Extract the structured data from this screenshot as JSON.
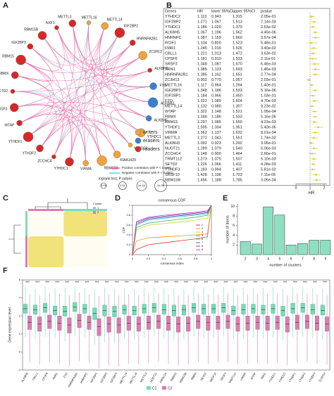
{
  "chart_data": [
    {
      "type": "network",
      "panel": "A",
      "nodes": [
        {
          "name": "METTL16",
          "group": 0
        },
        {
          "name": "METTL14",
          "group": 0
        },
        {
          "name": "IGF2BP2",
          "group": 2
        },
        {
          "name": "HNRNPA2B1",
          "group": 2
        },
        {
          "name": "ZC3H13",
          "group": 0
        },
        {
          "name": "ALKBH5",
          "group": 2
        },
        {
          "name": "FTO",
          "group": 1
        },
        {
          "name": "ALKBH3",
          "group": 1
        },
        {
          "name": "ALKBH5",
          "group": 1
        },
        {
          "name": "YTHDC1",
          "group": 0
        },
        {
          "name": "YTHDC2",
          "group": 0
        },
        {
          "name": "KIAA1429",
          "group": 0
        },
        {
          "name": "RBM15B",
          "group": 0
        },
        {
          "name": "VIRMA",
          "group": 0
        },
        {
          "name": "YTHDC1",
          "group": 2
        },
        {
          "name": "ZCCHC4",
          "group": 2
        },
        {
          "name": "YTHDF2",
          "group": 2
        },
        {
          "name": "YTHDF1",
          "group": 2
        },
        {
          "name": "WTAP",
          "group": 2
        },
        {
          "name": "SRSF3",
          "group": 2
        },
        {
          "name": "SETD2",
          "group": 2
        },
        {
          "name": "RBMX",
          "group": 2
        },
        {
          "name": "RBM15",
          "group": 2
        },
        {
          "name": "IGF2BP3",
          "group": 2
        },
        {
          "name": "RBM15B",
          "group": 2
        },
        {
          "name": "NXF1",
          "group": 2
        },
        {
          "name": "METTL3",
          "group": 2
        }
      ],
      "group_names": [
        "writers",
        "erasers",
        "readers"
      ],
      "group_colors": [
        "#f2a33a",
        "#3b7fd4",
        "#d62828"
      ],
      "edge_legend": [
        "Positive correlation with P < 0.0001",
        "Negative correlation with P < 0.0001"
      ],
      "edge_colors": [
        "#e45f9f",
        "#5cc8e8"
      ],
      "size_title": "logrank test, P values",
      "size_labels": [
        "0.05",
        "0.01",
        "1e-04",
        "1e-08"
      ]
    },
    {
      "type": "forest",
      "panel": "B",
      "header": [
        "Genes",
        "HR",
        "lower 95%CI",
        "upper 95%CI",
        "pvalue"
      ],
      "xlabel": "HR",
      "xlim": [
        0,
        2.2
      ],
      "xticks": [
        0,
        1,
        2
      ],
      "color": "#e0c93a",
      "rows": [
        [
          "YTHDC2",
          "1.113",
          "0.943",
          "1.315",
          "2.05e-01"
        ],
        [
          "IGF2BP2",
          "1.271",
          "1.067",
          "1.513",
          "7.14e-03"
        ],
        [
          "YTHDC1",
          "1.186",
          "1.020",
          "1.379",
          "2.63e-02"
        ],
        [
          "ALKBH5",
          "1.367",
          "1.196",
          "1.562",
          "4.45e-06"
        ],
        [
          "HNRNPC",
          "1.387",
          "1.159",
          "1.660",
          "3.57e-04"
        ],
        [
          "RCIF1",
          "1.104",
          "0.800",
          "1.523",
          "5.48e-01"
        ],
        [
          "FMR1",
          "1.245",
          "1.016",
          "1.526",
          "3.40e-02"
        ],
        [
          "CBLL1",
          "1.221",
          "1.013",
          "1.472",
          "3.63e-02"
        ],
        [
          "CPSF6",
          "1.181",
          "0.910",
          "1.533",
          "2.11e-01"
        ],
        [
          "SRSF3",
          "1.348",
          "1.087",
          "1.670",
          "6.46e-03"
        ],
        [
          "XRN1",
          "1.385",
          "1.133",
          "1.693",
          "1.46e-03"
        ],
        [
          "HNRNPA2B1",
          "1.385",
          "1.162",
          "1.651",
          "2.77e-04"
        ],
        [
          "ZC3H13",
          "0.902",
          "0.770",
          "1.057",
          "2.03e-01"
        ],
        [
          "METTL16",
          "1.117",
          "0.964",
          "1.294",
          "1.40e-01"
        ],
        [
          "IGF2BP3",
          "1.348",
          "1.186",
          "1.533",
          "5.16e-06"
        ],
        [
          "IGF2BP1",
          "1.184",
          "0.966",
          "1.450",
          "1.03e-01"
        ],
        [
          "FTO",
          "1.322",
          "1.089",
          "1.604",
          "4.70e-03"
        ],
        [
          "METTL14",
          "1.132",
          "0.980",
          "1.307",
          "9.23e-02"
        ],
        [
          "WTAP",
          "1.322",
          "1.148",
          "1.521",
          "1.05e-04"
        ],
        [
          "RBMX",
          "1.348",
          "1.186",
          "1.533",
          "5.16e-06"
        ],
        [
          "RBM15",
          "1.297",
          "1.085",
          "1.550",
          "4.23e-03"
        ],
        [
          "YTHDF1",
          "1.595",
          "1.304",
          "1.951",
          "5.40e-06"
        ],
        [
          "VIRMA",
          "1.362",
          "1.137",
          "1.632",
          "8.01e-04"
        ],
        [
          "METTL3",
          "1.272",
          "1.043",
          "1.551",
          "1.74e-02"
        ],
        [
          "ALKBH3",
          "1.092",
          "0.923",
          "1.292",
          "3.05e-01"
        ],
        [
          "NUDT21",
          "1.289",
          "1.079",
          "1.540",
          "5.06e-03"
        ],
        [
          "ZCCHC4",
          "1.148",
          "0.900",
          "1.464",
          "2.66e-01"
        ],
        [
          "TRMT112",
          "1.273",
          "1.075",
          "1.507",
          "5.10e-03"
        ],
        [
          "SETD2",
          "1.226",
          "1.066",
          "1.411",
          "4.28e-03"
        ],
        [
          "YTHDF3",
          "1.183",
          "0.994",
          "1.407",
          "5.81e-02"
        ],
        [
          "SRSF10",
          "1.428",
          "1.198",
          "1.703",
          "7.11e-05"
        ],
        [
          "RBM15B",
          "1.456",
          "1.188",
          "1.785",
          "3.05e-04"
        ]
      ]
    },
    {
      "type": "heatmap",
      "panel": "C",
      "legend_title": "Cluster",
      "legend": [
        "1",
        "2"
      ],
      "colors": [
        "#7fdcb3",
        "#e07ab2"
      ]
    },
    {
      "type": "line",
      "panel": "D",
      "title": "consensus CDF",
      "xlabel": "consensus index",
      "ylabel": "CDF",
      "xlim": [
        0,
        1
      ],
      "ylim": [
        0,
        1
      ],
      "xticks": [
        0,
        0.2,
        0.4,
        0.6,
        0.8,
        1
      ],
      "yticks": [
        0,
        0.2,
        0.4,
        0.6,
        0.8,
        1
      ],
      "x": [
        0,
        0.05,
        0.2,
        0.4,
        0.6,
        0.8,
        0.95,
        1
      ],
      "series": [
        {
          "name": "2",
          "color": "#e3342f",
          "values": [
            0,
            0.1,
            0.2,
            0.24,
            0.28,
            0.32,
            0.36,
            1
          ]
        },
        {
          "name": "3",
          "color": "#f39c12",
          "values": [
            0,
            0.28,
            0.34,
            0.36,
            0.38,
            0.4,
            0.42,
            1
          ]
        },
        {
          "name": "4",
          "color": "#c0d236",
          "values": [
            0,
            0.5,
            0.6,
            0.63,
            0.66,
            0.7,
            0.74,
            1
          ]
        },
        {
          "name": "5",
          "color": "#38b54a",
          "values": [
            0,
            0.55,
            0.64,
            0.68,
            0.72,
            0.76,
            0.8,
            1
          ]
        },
        {
          "name": "6",
          "color": "#2cc5c8",
          "values": [
            0,
            0.6,
            0.7,
            0.74,
            0.77,
            0.8,
            0.83,
            1
          ]
        },
        {
          "name": "7",
          "color": "#3b6fd6",
          "values": [
            0,
            0.62,
            0.72,
            0.76,
            0.79,
            0.82,
            0.85,
            1
          ]
        },
        {
          "name": "8",
          "color": "#8e44ad",
          "values": [
            0,
            0.65,
            0.74,
            0.78,
            0.81,
            0.84,
            0.87,
            1
          ]
        },
        {
          "name": "9",
          "color": "#d63ab0",
          "values": [
            0,
            0.67,
            0.76,
            0.8,
            0.83,
            0.86,
            0.89,
            1
          ]
        }
      ]
    },
    {
      "type": "bar",
      "panel": "E",
      "xlabel": "number of clusters",
      "ylabel": "number of items",
      "categories": [
        "2",
        "3",
        "4",
        "5",
        "6",
        "7",
        "8",
        "9"
      ],
      "values": [
        2.7,
        2.2,
        9.9,
        8.2,
        2.0,
        2.3,
        3.0,
        3.0
      ],
      "color": "#8fe0c2",
      "ylim": [
        0,
        10.5
      ],
      "yticks": [
        2,
        4,
        6,
        8,
        10
      ]
    },
    {
      "type": "box",
      "panel": "F",
      "ylabel": "Gene expression level",
      "ylim": [
        -4,
        6
      ],
      "yticks": [
        -4,
        -2,
        0,
        2,
        4,
        6
      ],
      "categories": [
        "ALKBH5",
        "CBLL1",
        "CPSF6",
        "FMR1",
        "FTO",
        "HNRNPA2B1",
        "HNRNPC",
        "IGF2BP1",
        "IGF2BP2",
        "IGF2BP3",
        "METTL14",
        "METTL16",
        "METTL3",
        "NUDT21",
        "PRRC2A",
        "RBM15",
        "RBM15B",
        "RBMX",
        "SETD2",
        "SRSF10",
        "SRSF3",
        "TRMT112",
        "VIRMA",
        "WTAP",
        "XRN1",
        "YTHDC1",
        "YTHDC2",
        "YTHDF1",
        "YTHDF2",
        "YTHDF3",
        "ZC3H13"
      ],
      "significance": [
        "***",
        "***",
        "***",
        "***",
        "***",
        "***",
        "***",
        "***",
        "***",
        "***",
        "***",
        "***",
        "***",
        "***",
        "***",
        "***",
        "***",
        "***",
        "***",
        "***",
        "***",
        "***",
        "***",
        "***",
        "***",
        "***",
        "***",
        "***",
        "***",
        "***",
        "***"
      ],
      "series": [
        {
          "name": "C1",
          "color": "#6fe0b8",
          "values": [
            [
              -0.4,
              2.3,
              2.8,
              3.3,
              5.2
            ],
            [
              -0.6,
              2.2,
              2.7,
              3.2,
              5.0
            ],
            [
              -0.3,
              2.4,
              2.9,
              3.4,
              5.3
            ],
            [
              -0.5,
              2.1,
              2.6,
              3.1,
              5.1
            ],
            [
              -0.8,
              2.0,
              2.5,
              3.1,
              5.2
            ],
            [
              -0.2,
              2.5,
              3.0,
              3.5,
              5.4
            ],
            [
              -0.4,
              2.3,
              2.8,
              3.3,
              5.1
            ],
            [
              -1.2,
              1.6,
              2.3,
              2.9,
              4.9
            ],
            [
              -0.9,
              2.0,
              2.6,
              3.2,
              5.2
            ],
            [
              -1.0,
              1.9,
              2.5,
              3.1,
              5.0
            ],
            [
              -0.5,
              2.2,
              2.7,
              3.2,
              5.1
            ],
            [
              -0.6,
              2.1,
              2.6,
              3.1,
              5.0
            ],
            [
              -0.4,
              2.3,
              2.8,
              3.3,
              5.2
            ],
            [
              -0.3,
              2.4,
              2.9,
              3.4,
              5.2
            ],
            [
              -0.5,
              2.2,
              2.7,
              3.3,
              5.1
            ],
            [
              -0.7,
              2.0,
              2.6,
              3.2,
              5.1
            ],
            [
              -0.6,
              2.1,
              2.7,
              3.2,
              5.0
            ],
            [
              -0.3,
              2.4,
              2.9,
              3.4,
              5.3
            ],
            [
              -0.5,
              2.2,
              2.8,
              3.3,
              5.2
            ],
            [
              -0.4,
              2.3,
              2.8,
              3.3,
              5.1
            ],
            [
              -0.3,
              2.4,
              2.9,
              3.4,
              5.2
            ],
            [
              -0.6,
              2.1,
              2.6,
              3.1,
              5.0
            ],
            [
              -0.5,
              2.2,
              2.7,
              3.3,
              5.2
            ],
            [
              -0.4,
              2.3,
              2.8,
              3.3,
              5.1
            ],
            [
              -0.5,
              2.2,
              2.7,
              3.2,
              5.1
            ],
            [
              -0.4,
              2.3,
              2.8,
              3.3,
              5.2
            ],
            [
              -0.7,
              2.0,
              2.6,
              3.1,
              5.0
            ],
            [
              -0.4,
              2.3,
              2.8,
              3.4,
              5.2
            ],
            [
              -0.3,
              2.4,
              2.9,
              3.4,
              5.3
            ],
            [
              -0.5,
              2.2,
              2.7,
              3.3,
              5.1
            ],
            [
              -0.6,
              2.1,
              2.6,
              3.2,
              5.0
            ]
          ]
        },
        {
          "name": "C2",
          "color": "#e07ab2",
          "values": [
            [
              -3.2,
              0.5,
              1.3,
              2.0,
              4.4
            ],
            [
              -3.4,
              0.3,
              1.1,
              1.9,
              4.3
            ],
            [
              -3.1,
              0.6,
              1.4,
              2.1,
              4.5
            ],
            [
              -3.3,
              0.4,
              1.2,
              2.0,
              4.4
            ],
            [
              -3.6,
              0.1,
              1.0,
              1.8,
              4.3
            ],
            [
              -3.0,
              0.7,
              1.5,
              2.2,
              4.6
            ],
            [
              -3.2,
              0.5,
              1.3,
              2.0,
              4.4
            ],
            [
              -3.8,
              -0.2,
              0.8,
              1.7,
              4.2
            ],
            [
              -3.5,
              0.2,
              1.1,
              1.9,
              4.4
            ],
            [
              -3.6,
              0.1,
              1.0,
              1.8,
              4.3
            ],
            [
              -3.3,
              0.4,
              1.2,
              2.0,
              4.4
            ],
            [
              -3.4,
              0.3,
              1.1,
              1.9,
              4.3
            ],
            [
              -3.2,
              0.5,
              1.3,
              2.0,
              4.4
            ],
            [
              -3.1,
              0.6,
              1.4,
              2.1,
              4.5
            ],
            [
              -3.3,
              0.4,
              1.2,
              2.0,
              4.4
            ],
            [
              -3.5,
              0.2,
              1.1,
              1.9,
              4.3
            ],
            [
              -3.4,
              0.3,
              1.2,
              1.9,
              4.3
            ],
            [
              -3.1,
              0.6,
              1.4,
              2.1,
              4.5
            ],
            [
              -3.3,
              0.4,
              1.3,
              2.0,
              4.4
            ],
            [
              -3.2,
              0.5,
              1.3,
              2.0,
              4.4
            ],
            [
              -3.1,
              0.6,
              1.4,
              2.1,
              4.5
            ],
            [
              -3.4,
              0.3,
              1.1,
              1.9,
              4.3
            ],
            [
              -3.3,
              0.4,
              1.2,
              2.0,
              4.4
            ],
            [
              -3.2,
              0.5,
              1.3,
              2.0,
              4.4
            ],
            [
              -3.3,
              0.4,
              1.2,
              2.0,
              4.4
            ],
            [
              -3.2,
              0.5,
              1.3,
              2.0,
              4.5
            ],
            [
              -3.5,
              0.2,
              1.1,
              1.9,
              4.3
            ],
            [
              -3.2,
              0.5,
              1.3,
              2.1,
              4.5
            ],
            [
              -3.1,
              0.6,
              1.4,
              2.1,
              4.5
            ],
            [
              -3.3,
              0.4,
              1.2,
              2.0,
              4.4
            ],
            [
              -3.4,
              0.3,
              1.1,
              1.9,
              4.3
            ]
          ]
        }
      ]
    }
  ]
}
